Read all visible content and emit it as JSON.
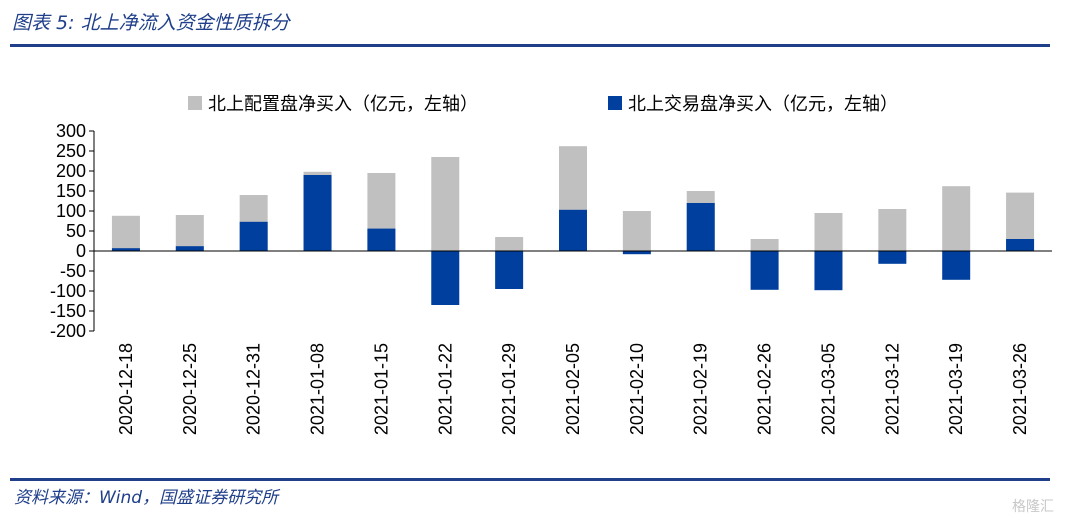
{
  "figure": {
    "title": "图表 5:  北上净流入资金性质拆分",
    "source": "资料来源：Wind，国盛证券研究所",
    "watermark": "格隆汇"
  },
  "colors": {
    "config": "#c0c0c0",
    "trade": "#003f9e",
    "rule": "#1f3f8a"
  },
  "chart_data": {
    "type": "bar",
    "stacked": false,
    "categories": [
      "2020-12-18",
      "2020-12-25",
      "2020-12-31",
      "2021-01-08",
      "2021-01-15",
      "2021-01-22",
      "2021-01-29",
      "2021-02-05",
      "2021-02-10",
      "2021-02-19",
      "2021-02-26",
      "2021-03-05",
      "2021-03-12",
      "2021-03-19",
      "2021-03-26"
    ],
    "series": [
      {
        "name": "北上配置盘净买入（亿元，左轴）",
        "color": "#c0c0c0",
        "values": [
          88,
          90,
          140,
          198,
          195,
          235,
          35,
          262,
          100,
          150,
          30,
          95,
          105,
          162,
          146
        ]
      },
      {
        "name": "北上交易盘净买入（亿元，左轴）",
        "color": "#003f9e",
        "values": [
          7,
          12,
          73,
          190,
          56,
          -135,
          -95,
          103,
          -8,
          120,
          -97,
          -98,
          -32,
          -72,
          30
        ]
      }
    ],
    "yticks": [
      300,
      250,
      200,
      150,
      100,
      50,
      0,
      -50,
      -100,
      -150,
      -200
    ],
    "ylim": [
      -200,
      300
    ],
    "legend_position": "top",
    "grid": false
  }
}
